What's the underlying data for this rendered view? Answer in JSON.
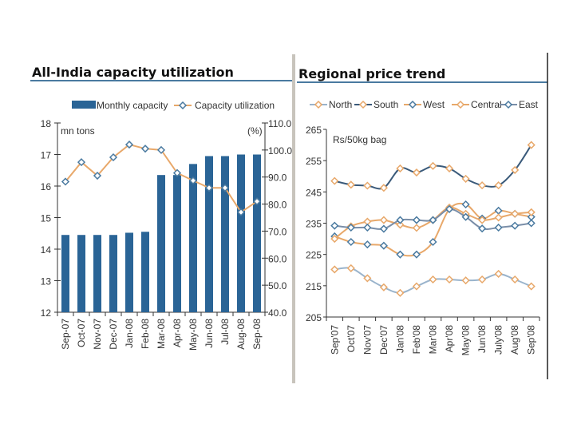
{
  "colors": {
    "bar": "#2a6496",
    "orange": "#e8a86a",
    "dark": "#3a5a7a",
    "lightblue": "#9ab4cc",
    "title_rule": "#4a7aa0",
    "separator": "#c8c4bc"
  },
  "chart_data": [
    {
      "type": "bar+line",
      "title": "All-India capacity utilization",
      "ylabel": "mn tons",
      "ylabel_right": "(%)",
      "ylim": [
        12,
        18
      ],
      "ylim_right": [
        40,
        110
      ],
      "yticks": [
        "12",
        "13",
        "14",
        "15",
        "16",
        "17",
        "18"
      ],
      "yticks_right": [
        "40.0",
        "50.0",
        "60.0",
        "70.0",
        "80.0",
        "90.0",
        "100.0",
        "110.0"
      ],
      "categories": [
        "Sep-07",
        "Oct-07",
        "Nov-07",
        "Dec-07",
        "Jan-08",
        "Feb-08",
        "Mar-08",
        "Apr-08",
        "May-08",
        "Jun-08",
        "Jul-08",
        "Aug-08",
        "Sep-08"
      ],
      "legend_placement": "top",
      "series": [
        {
          "name": "Monthly capacity",
          "type": "bar",
          "axis": "left",
          "values": [
            14.45,
            14.45,
            14.45,
            14.45,
            14.52,
            14.55,
            16.35,
            16.35,
            16.7,
            16.95,
            16.95,
            17.0,
            17.0
          ]
        },
        {
          "name": "Capacity utilization",
          "type": "line",
          "axis": "right",
          "values": [
            88.3,
            95.5,
            90.5,
            97.3,
            102.0,
            100.5,
            100.0,
            91.5,
            88.7,
            86.0,
            86.0,
            77.0,
            81.0
          ]
        }
      ]
    },
    {
      "type": "line",
      "title": "Regional price trend",
      "ylabel": "Rs/50kg bag",
      "ylim": [
        205,
        265
      ],
      "yticks": [
        "205",
        "215",
        "225",
        "235",
        "245",
        "255",
        "265"
      ],
      "categories": [
        "Sep'07",
        "Oct'07",
        "Nov'07",
        "Dec'07",
        "Jan'08",
        "Feb'08",
        "Mar'08",
        "Apr'08",
        "May'08",
        "Jun'08",
        "July'08",
        "Aug'08",
        "Sep'08"
      ],
      "legend_placement": "top",
      "series": [
        {
          "name": "North",
          "line": "#9ab4cc",
          "marker": "#e8a86a",
          "values": [
            220.2,
            220.6,
            217.4,
            214.5,
            212.7,
            214.8,
            217.0,
            217.0,
            216.7,
            217.0,
            218.8,
            217.0,
            214.8
          ]
        },
        {
          "name": "South",
          "line": "#3a5a7a",
          "marker": "#e8a86a",
          "values": [
            248.5,
            247.3,
            247.0,
            246.3,
            252.5,
            251.2,
            253.3,
            252.5,
            249.2,
            247.1,
            247.1,
            252.0,
            260.0
          ]
        },
        {
          "name": "West",
          "line": "#e8a86a",
          "marker": "#4a7aa0",
          "values": [
            230.8,
            229.0,
            228.2,
            227.8,
            225.0,
            225.0,
            229.0,
            239.5,
            241.0,
            236.5,
            239.0,
            238.0,
            237.0
          ]
        },
        {
          "name": "Central",
          "line": "#e8a86a",
          "marker": "#e8a86a",
          "values": [
            230.0,
            234.0,
            235.5,
            236.0,
            234.5,
            233.5,
            236.0,
            240.0,
            238.0,
            236.0,
            236.8,
            238.0,
            238.5
          ]
        },
        {
          "name": "East",
          "line": "#7a8ea8",
          "marker": "#4a7aa0",
          "values": [
            234.2,
            233.6,
            233.6,
            233.2,
            236.0,
            236.0,
            236.0,
            239.5,
            237.0,
            233.3,
            233.6,
            234.2,
            235.0
          ]
        }
      ]
    }
  ]
}
